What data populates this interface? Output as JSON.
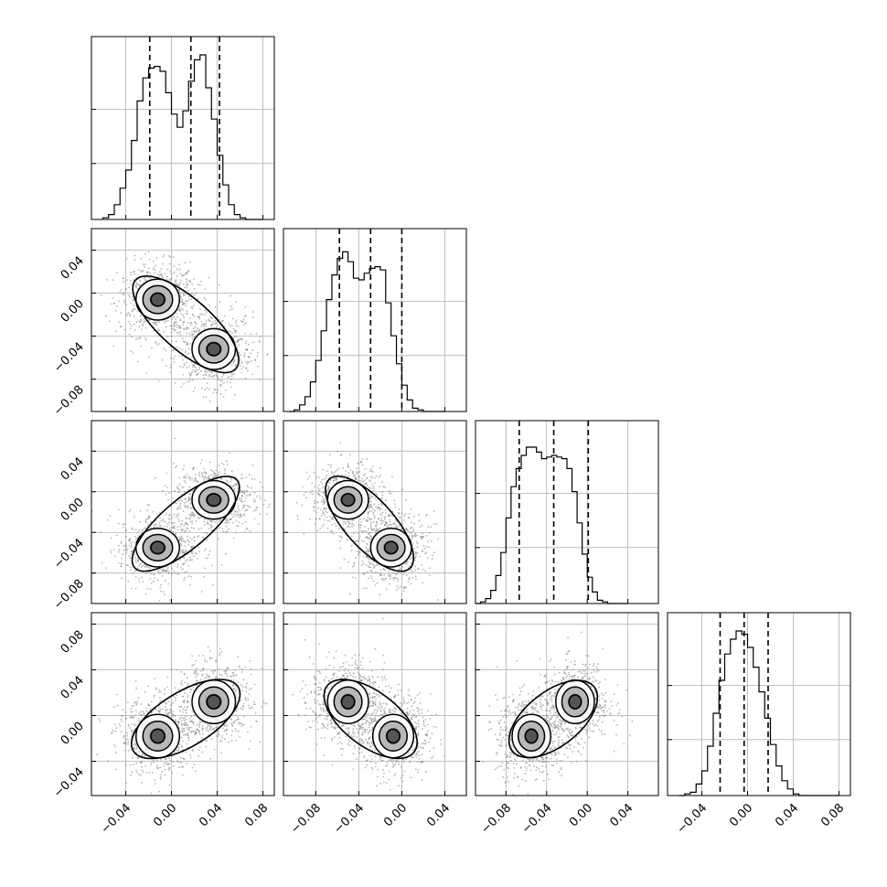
{
  "chart_data": {
    "type": "corner",
    "title": "",
    "parameters": 4,
    "grid": true,
    "colors": {
      "line": "#000000",
      "grid": "#b0b0b0",
      "points": "#7a7a7a",
      "hist_fill": "#555555"
    },
    "axis_ranges": [
      [
        -0.07,
        0.09
      ],
      [
        -0.11,
        0.06
      ],
      [
        -0.11,
        0.07
      ],
      [
        -0.07,
        0.09
      ]
    ],
    "bottom_tick_labels": [
      [
        "−0.04",
        "0.00",
        "0.04",
        "0.08"
      ],
      [
        "−0.08",
        "−0.04",
        "0.00",
        "0.04"
      ],
      [
        "−0.08",
        "−0.04",
        "0.00",
        "0.04"
      ],
      [
        "−0.04",
        "0.00",
        "0.04",
        "0.08"
      ]
    ],
    "bottom_tick_values": [
      [
        -0.04,
        0.0,
        0.04,
        0.08
      ],
      [
        -0.08,
        -0.04,
        0.0,
        0.04
      ],
      [
        -0.08,
        -0.04,
        0.0,
        0.04
      ],
      [
        -0.04,
        0.0,
        0.04,
        0.08
      ]
    ],
    "left_tick_labels": [
      [],
      [
        "0.04",
        "0.00",
        "−0.04",
        "−0.08"
      ],
      [
        "0.04",
        "0.00",
        "−0.04",
        "−0.08"
      ],
      [
        "0.08",
        "0.04",
        "0.00",
        "−0.04"
      ]
    ],
    "left_tick_values": [
      [],
      [
        0.04,
        0.0,
        -0.04,
        -0.08
      ],
      [
        0.04,
        0.0,
        -0.04,
        -0.08
      ],
      [
        0.08,
        0.04,
        0.0,
        -0.04
      ]
    ],
    "histograms": [
      {
        "bins": [
          -0.06,
          -0.055,
          -0.05,
          -0.045,
          -0.04,
          -0.035,
          -0.03,
          -0.025,
          -0.02,
          -0.015,
          -0.01,
          -0.005,
          0.0,
          0.005,
          0.01,
          0.015,
          0.02,
          0.025,
          0.03,
          0.035,
          0.04,
          0.045,
          0.05,
          0.055,
          0.06,
          0.065,
          0.07,
          0.075,
          0.08
        ],
        "counts": [
          0.01,
          0.03,
          0.09,
          0.19,
          0.3,
          0.48,
          0.72,
          0.86,
          0.92,
          0.93,
          0.9,
          0.77,
          0.64,
          0.56,
          0.66,
          0.84,
          0.97,
          1.0,
          0.8,
          0.61,
          0.39,
          0.21,
          0.09,
          0.03,
          0.01,
          0.0,
          0.0,
          0.0
        ],
        "quantiles": [
          -0.019,
          0.017,
          0.042
        ],
        "yticks": [
          0.0,
          0.5,
          1.0
        ]
      },
      {
        "bins": [
          -0.105,
          -0.1,
          -0.095,
          -0.09,
          -0.085,
          -0.08,
          -0.075,
          -0.07,
          -0.065,
          -0.06,
          -0.055,
          -0.05,
          -0.045,
          -0.04,
          -0.035,
          -0.03,
          -0.025,
          -0.02,
          -0.015,
          -0.01,
          -0.005,
          0.0,
          0.005,
          0.01,
          0.015,
          0.02,
          0.025,
          0.03,
          0.035,
          0.04
        ],
        "counts": [
          0.0,
          0.01,
          0.04,
          0.09,
          0.18,
          0.31,
          0.49,
          0.68,
          0.83,
          0.93,
          0.97,
          0.91,
          0.81,
          0.8,
          0.84,
          0.87,
          0.88,
          0.86,
          0.66,
          0.46,
          0.29,
          0.16,
          0.07,
          0.02,
          0.01,
          0.0,
          0.0,
          0.0,
          0.0
        ],
        "quantiles": [
          -0.058,
          -0.029,
          0.0
        ],
        "yticks": [
          0.0,
          0.5,
          1.0
        ]
      },
      {
        "bins": [
          -0.11,
          -0.105,
          -0.1,
          -0.095,
          -0.09,
          -0.085,
          -0.08,
          -0.075,
          -0.07,
          -0.065,
          -0.06,
          -0.055,
          -0.05,
          -0.045,
          -0.04,
          -0.035,
          -0.03,
          -0.025,
          -0.02,
          -0.015,
          -0.01,
          -0.005,
          0.0,
          0.005,
          0.01,
          0.015,
          0.02,
          0.025,
          0.03,
          0.035,
          0.04
        ],
        "counts": [
          0.0,
          0.01,
          0.03,
          0.08,
          0.17,
          0.31,
          0.52,
          0.71,
          0.82,
          0.9,
          0.95,
          0.95,
          0.92,
          0.88,
          0.89,
          0.9,
          0.89,
          0.88,
          0.82,
          0.68,
          0.49,
          0.3,
          0.16,
          0.07,
          0.02,
          0.01,
          0.0,
          0.0,
          0.0,
          0.0
        ],
        "quantiles": [
          -0.067,
          -0.033,
          0.001
        ],
        "yticks": [
          0.0,
          0.5,
          1.0
        ]
      },
      {
        "bins": [
          -0.06,
          -0.055,
          -0.05,
          -0.045,
          -0.04,
          -0.035,
          -0.03,
          -0.025,
          -0.02,
          -0.015,
          -0.01,
          -0.005,
          0.0,
          0.005,
          0.01,
          0.015,
          0.02,
          0.025,
          0.03,
          0.035,
          0.04,
          0.045,
          0.05,
          0.055,
          0.06,
          0.065,
          0.07,
          0.075,
          0.08
        ],
        "counts": [
          0.0,
          0.01,
          0.02,
          0.07,
          0.15,
          0.3,
          0.5,
          0.7,
          0.86,
          0.95,
          1.0,
          0.98,
          0.9,
          0.78,
          0.63,
          0.47,
          0.31,
          0.18,
          0.09,
          0.04,
          0.01,
          0.0,
          0.0,
          0.0,
          0.0,
          0.0,
          0.0,
          0.0
        ],
        "quantiles": [
          -0.024,
          -0.003,
          0.018
        ],
        "yticks": [
          0.0,
          0.5,
          1.0
        ]
      }
    ],
    "pair_panels": [
      {
        "row": 1,
        "col": 0,
        "centers": [
          [
            -0.012,
            -0.006
          ],
          [
            0.037,
            -0.052
          ]
        ]
      },
      {
        "row": 2,
        "col": 0,
        "centers": [
          [
            -0.012,
            -0.055
          ],
          [
            0.037,
            -0.008
          ]
        ]
      },
      {
        "row": 2,
        "col": 1,
        "centers": [
          [
            -0.05,
            -0.008
          ],
          [
            -0.01,
            -0.055
          ]
        ]
      },
      {
        "row": 3,
        "col": 0,
        "centers": [
          [
            -0.012,
            -0.018
          ],
          [
            0.037,
            0.012
          ]
        ]
      },
      {
        "row": 3,
        "col": 1,
        "centers": [
          [
            -0.05,
            0.012
          ],
          [
            -0.008,
            -0.018
          ]
        ]
      },
      {
        "row": 3,
        "col": 2,
        "centers": [
          [
            -0.055,
            -0.018
          ],
          [
            -0.012,
            0.012
          ]
        ]
      }
    ],
    "pair_spread": 0.017,
    "contour_radii": [
      0.006,
      0.013,
      0.019,
      0.025
    ]
  }
}
